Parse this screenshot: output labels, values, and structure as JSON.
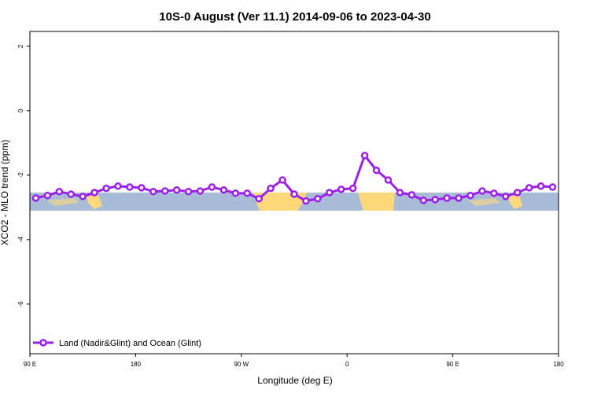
{
  "chart_data": {
    "type": "line",
    "title": "10S-0 August (Ver 11.1)   2014-09-06 to 2023-04-30",
    "x_label": "Longitude (deg E)",
    "y_label": "XCO2 - MLO trend (ppm)",
    "x": [
      95,
      105,
      115,
      125,
      135,
      145,
      155,
      165,
      175,
      185,
      195,
      205,
      215,
      225,
      235,
      245,
      255,
      265,
      275,
      285,
      295,
      305,
      315,
      325,
      335,
      345,
      355,
      365,
      375,
      385,
      395,
      405,
      415,
      425,
      435,
      445,
      455,
      465,
      475,
      485,
      495,
      505,
      515,
      525,
      535
    ],
    "series": [
      {
        "name": "Land (Nadir&Glint) and Ocean (Glint)",
        "color": "#9b1fe8",
        "values": [
          -2.71,
          -2.63,
          -2.51,
          -2.59,
          -2.66,
          -2.54,
          -2.41,
          -2.34,
          -2.37,
          -2.39,
          -2.51,
          -2.49,
          -2.46,
          -2.51,
          -2.49,
          -2.37,
          -2.46,
          -2.56,
          -2.56,
          -2.73,
          -2.41,
          -2.15,
          -2.59,
          -2.8,
          -2.73,
          -2.54,
          -2.44,
          -2.41,
          -1.39,
          -1.85,
          -2.15,
          -2.54,
          -2.61,
          -2.78,
          -2.76,
          -2.71,
          -2.71,
          -2.63,
          -2.49,
          -2.56,
          -2.66,
          -2.54,
          -2.39,
          -2.34,
          -2.37
        ]
      }
    ],
    "xlim": [
      90,
      540
    ],
    "xticks": [
      {
        "value": 90,
        "label": "90 E"
      },
      180,
      {
        "value": 270,
        "label": "90 W"
      },
      {
        "value": 360,
        "label": "0"
      },
      {
        "value": 450,
        "label": "90 E"
      },
      {
        "value": 540,
        "label": "180"
      }
    ],
    "ylim": [
      -7.54,
      2.46
    ],
    "yticks": [
      2,
      0,
      -2,
      -4,
      -6
    ],
    "legend": "bottom-left"
  }
}
